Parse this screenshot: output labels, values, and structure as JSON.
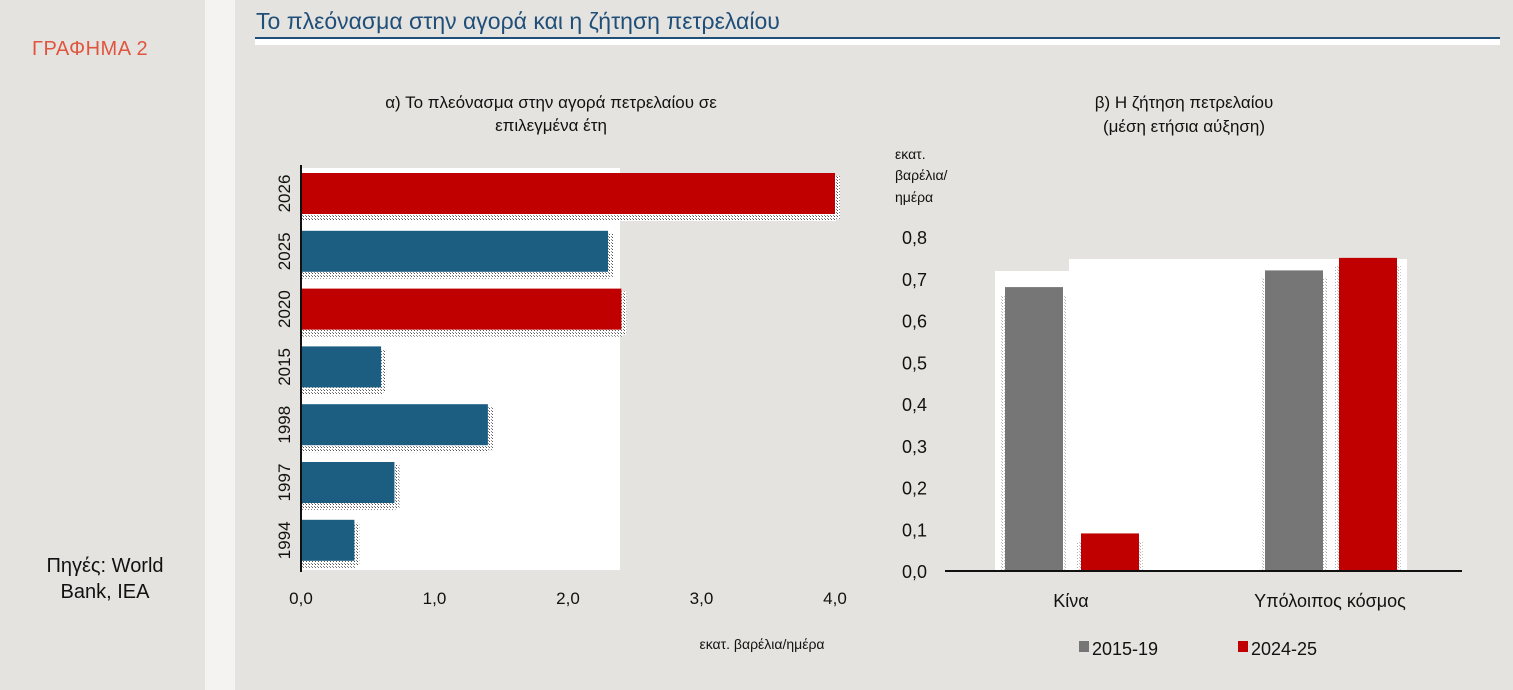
{
  "sidebar": {
    "figure_label": "ΓΡΑΦΗΜΑ 2",
    "sources": "Πηγές: World Bank, IEA"
  },
  "header": {
    "title": "Το πλεόνασμα στην αγορά και η ζήτηση πετρελαίου"
  },
  "colors": {
    "red": "#c00000",
    "blue": "#1b5e82",
    "gray": "#767676",
    "title_blue": "#1f4e79",
    "label_orange": "#e0553f"
  },
  "chart_data": [
    {
      "type": "bar",
      "orientation": "horizontal",
      "title_line1": "α) Το πλεόνασμα στην αγορά πετρελαίου σε",
      "title_line2": "επιλεγμένα έτη",
      "xlabel": "εκατ. βαρέλια/ημέρα",
      "xlim": [
        0,
        4
      ],
      "xticks": [
        "0,0",
        "1,0",
        "2,0",
        "3,0",
        "4,0"
      ],
      "categories": [
        "2026",
        "2025",
        "2020",
        "2015",
        "1998",
        "1997",
        "1994"
      ],
      "values": [
        4.0,
        2.3,
        2.4,
        0.6,
        1.4,
        0.7,
        0.4
      ],
      "bar_colors": [
        "red",
        "blue",
        "red",
        "blue",
        "blue",
        "blue",
        "blue"
      ]
    },
    {
      "type": "bar",
      "title_line1": "β) Η ζήτηση πετρελαίου",
      "title_line2": "(μέση ετήσια αύξηση)",
      "ylabel_lines": [
        "εκατ.",
        "βαρέλια/",
        "ημέρα"
      ],
      "ylim": [
        0,
        0.8
      ],
      "yticks": [
        "0,0",
        "0,1",
        "0,2",
        "0,3",
        "0,4",
        "0,5",
        "0,6",
        "0,7",
        "0,8"
      ],
      "categories": [
        "Κίνα",
        "Υπόλοιπος κόσμος"
      ],
      "series": [
        {
          "name": "2015-19",
          "color": "gray",
          "values": [
            0.68,
            0.72
          ]
        },
        {
          "name": "2024-25",
          "color": "red",
          "values": [
            0.09,
            0.75
          ]
        }
      ],
      "legend": "bottom"
    }
  ]
}
